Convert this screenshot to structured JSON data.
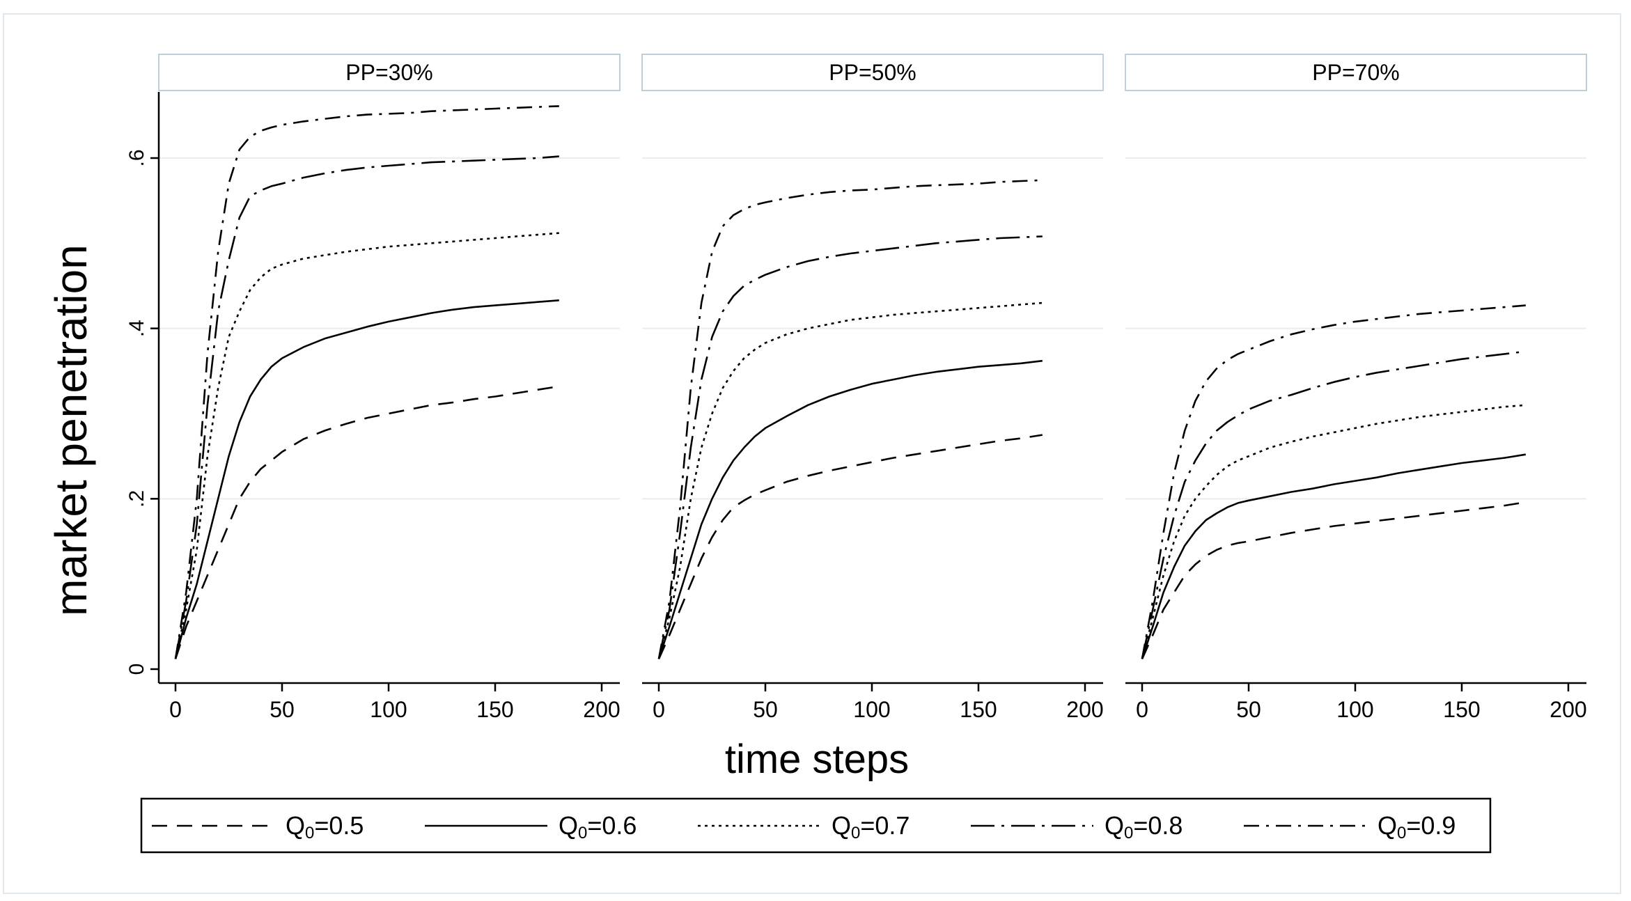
{
  "chart_data": {
    "type": "line",
    "ylabel": "market penetration",
    "xlabel": "time steps",
    "xlim": [
      0,
      200
    ],
    "ylim": [
      0,
      0.66
    ],
    "xticks": [
      0,
      50,
      100,
      150,
      200
    ],
    "yticks": [
      0,
      0.2,
      0.4,
      0.6
    ],
    "xtick_labels": [
      "0",
      "50",
      "100",
      "150",
      "200"
    ],
    "ytick_labels": [
      "0",
      ".2",
      ".4",
      ".6"
    ],
    "grid": true,
    "legend": {
      "position": "bottom",
      "entries": [
        {
          "sub": "0",
          "value": "=0.5",
          "symbol": "Q",
          "style": "dash"
        },
        {
          "sub": "0",
          "value": "=0.6",
          "symbol": "Q",
          "style": "solid"
        },
        {
          "sub": "0",
          "value": "=0.7",
          "symbol": "Q",
          "style": "dot"
        },
        {
          "sub": "0",
          "value": "=0.8",
          "symbol": "Q",
          "style": "longdash-dot"
        },
        {
          "sub": "0",
          "value": "=0.9",
          "symbol": "Q",
          "style": "dash-dot"
        }
      ]
    },
    "x": [
      0,
      5,
      10,
      15,
      20,
      25,
      30,
      35,
      40,
      45,
      50,
      60,
      70,
      80,
      90,
      100,
      110,
      120,
      130,
      140,
      150,
      160,
      170,
      180
    ],
    "panels": [
      {
        "title": "PP=30%",
        "series": [
          {
            "name": "Q0=0.5",
            "values": [
              0.012,
              0.05,
              0.08,
              0.11,
              0.14,
              0.17,
              0.2,
              0.22,
              0.235,
              0.245,
              0.255,
              0.27,
              0.28,
              0.288,
              0.295,
              0.3,
              0.305,
              0.31,
              0.313,
              0.317,
              0.32,
              0.324,
              0.328,
              0.332
            ]
          },
          {
            "name": "Q0=0.6",
            "values": [
              0.012,
              0.06,
              0.1,
              0.15,
              0.2,
              0.25,
              0.29,
              0.32,
              0.34,
              0.355,
              0.365,
              0.378,
              0.388,
              0.395,
              0.402,
              0.408,
              0.413,
              0.418,
              0.422,
              0.425,
              0.427,
              0.429,
              0.431,
              0.433
            ]
          },
          {
            "name": "Q0=0.7",
            "values": [
              0.012,
              0.07,
              0.14,
              0.25,
              0.33,
              0.39,
              0.42,
              0.445,
              0.46,
              0.47,
              0.475,
              0.482,
              0.486,
              0.49,
              0.493,
              0.496,
              0.498,
              0.5,
              0.502,
              0.504,
              0.506,
              0.508,
              0.51,
              0.512
            ]
          },
          {
            "name": "Q0=0.8",
            "values": [
              0.012,
              0.08,
              0.17,
              0.31,
              0.42,
              0.48,
              0.53,
              0.555,
              0.562,
              0.567,
              0.57,
              0.577,
              0.582,
              0.586,
              0.589,
              0.591,
              0.593,
              0.595,
              0.596,
              0.597,
              0.598,
              0.599,
              0.6,
              0.602
            ]
          },
          {
            "name": "Q0=0.9",
            "values": [
              0.012,
              0.09,
              0.2,
              0.37,
              0.49,
              0.57,
              0.61,
              0.625,
              0.632,
              0.636,
              0.639,
              0.643,
              0.646,
              0.649,
              0.651,
              0.652,
              0.653,
              0.655,
              0.656,
              0.657,
              0.658,
              0.659,
              0.66,
              0.661
            ]
          }
        ]
      },
      {
        "title": "PP=50%",
        "series": [
          {
            "name": "Q0=0.5",
            "values": [
              0.012,
              0.04,
              0.07,
              0.1,
              0.13,
              0.155,
              0.175,
              0.19,
              0.198,
              0.205,
              0.21,
              0.22,
              0.227,
              0.233,
              0.238,
              0.243,
              0.248,
              0.252,
              0.256,
              0.26,
              0.264,
              0.268,
              0.271,
              0.275
            ]
          },
          {
            "name": "Q0=0.6",
            "values": [
              0.012,
              0.05,
              0.09,
              0.13,
              0.17,
              0.2,
              0.225,
              0.245,
              0.26,
              0.273,
              0.283,
              0.297,
              0.31,
              0.32,
              0.328,
              0.335,
              0.34,
              0.345,
              0.349,
              0.352,
              0.355,
              0.357,
              0.359,
              0.362
            ]
          },
          {
            "name": "Q0=0.7",
            "values": [
              0.012,
              0.06,
              0.12,
              0.2,
              0.26,
              0.3,
              0.33,
              0.35,
              0.365,
              0.375,
              0.383,
              0.393,
              0.4,
              0.405,
              0.41,
              0.413,
              0.416,
              0.418,
              0.42,
              0.422,
              0.424,
              0.426,
              0.428,
              0.43
            ]
          },
          {
            "name": "Q0=0.8",
            "values": [
              0.012,
              0.07,
              0.16,
              0.26,
              0.34,
              0.39,
              0.42,
              0.438,
              0.45,
              0.457,
              0.463,
              0.472,
              0.479,
              0.484,
              0.488,
              0.491,
              0.494,
              0.497,
              0.5,
              0.502,
              0.504,
              0.506,
              0.507,
              0.508
            ]
          },
          {
            "name": "Q0=0.9",
            "values": [
              0.012,
              0.08,
              0.19,
              0.33,
              0.43,
              0.49,
              0.52,
              0.533,
              0.54,
              0.545,
              0.548,
              0.553,
              0.557,
              0.56,
              0.562,
              0.563,
              0.565,
              0.567,
              0.568,
              0.569,
              0.57,
              0.572,
              0.573,
              0.574
            ]
          }
        ]
      },
      {
        "title": "PP=70%",
        "series": [
          {
            "name": "Q0=0.5",
            "values": [
              0.012,
              0.04,
              0.07,
              0.09,
              0.11,
              0.123,
              0.133,
              0.14,
              0.145,
              0.148,
              0.15,
              0.155,
              0.16,
              0.164,
              0.168,
              0.171,
              0.174,
              0.177,
              0.18,
              0.183,
              0.186,
              0.189,
              0.192,
              0.196
            ]
          },
          {
            "name": "Q0=0.6",
            "values": [
              0.012,
              0.05,
              0.09,
              0.12,
              0.145,
              0.162,
              0.175,
              0.183,
              0.19,
              0.195,
              0.198,
              0.203,
              0.208,
              0.212,
              0.217,
              0.221,
              0.225,
              0.23,
              0.234,
              0.238,
              0.242,
              0.245,
              0.248,
              0.252
            ]
          },
          {
            "name": "Q0=0.7",
            "values": [
              0.012,
              0.06,
              0.11,
              0.15,
              0.18,
              0.2,
              0.215,
              0.228,
              0.238,
              0.245,
              0.25,
              0.26,
              0.267,
              0.273,
              0.278,
              0.283,
              0.288,
              0.292,
              0.296,
              0.299,
              0.302,
              0.305,
              0.308,
              0.31
            ]
          },
          {
            "name": "Q0=0.8",
            "values": [
              0.012,
              0.07,
              0.13,
              0.18,
              0.22,
              0.245,
              0.265,
              0.28,
              0.29,
              0.298,
              0.305,
              0.315,
              0.322,
              0.33,
              0.337,
              0.343,
              0.348,
              0.352,
              0.356,
              0.36,
              0.364,
              0.367,
              0.37,
              0.373
            ]
          },
          {
            "name": "Q0=0.9",
            "values": [
              0.012,
              0.08,
              0.16,
              0.23,
              0.28,
              0.315,
              0.338,
              0.353,
              0.363,
              0.37,
              0.375,
              0.385,
              0.393,
              0.399,
              0.404,
              0.408,
              0.411,
              0.414,
              0.417,
              0.419,
              0.421,
              0.423,
              0.425,
              0.427
            ]
          }
        ]
      }
    ]
  }
}
